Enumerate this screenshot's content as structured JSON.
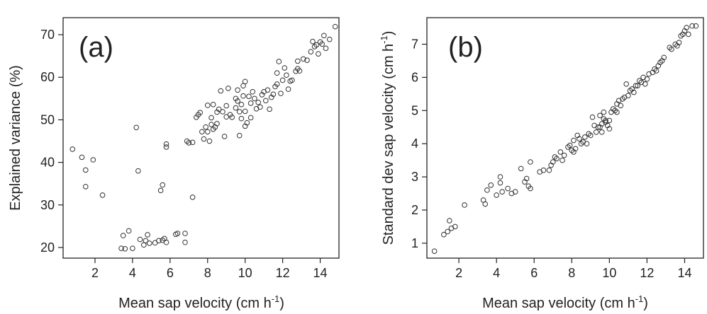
{
  "chart_data": [
    {
      "type": "scatter",
      "panel_label": "(a)",
      "xlabel": "Mean sap velocity (cm h",
      "xlabel_sup": "-1",
      "xlabel_end": ")",
      "ylabel": "Explained variance (%)",
      "xlim": [
        0.3,
        15.0
      ],
      "ylim": [
        17.5,
        74.0
      ],
      "xticks": [
        2,
        4,
        6,
        8,
        10,
        12,
        14
      ],
      "yticks": [
        20,
        30,
        40,
        50,
        60,
        70
      ],
      "points": [
        [
          0.8,
          43.1
        ],
        [
          1.3,
          41.2
        ],
        [
          1.5,
          38.2
        ],
        [
          1.5,
          34.3
        ],
        [
          1.9,
          40.6
        ],
        [
          2.4,
          32.3
        ],
        [
          3.4,
          19.8
        ],
        [
          3.5,
          22.8
        ],
        [
          3.6,
          19.7
        ],
        [
          3.8,
          23.9
        ],
        [
          4.0,
          19.8
        ],
        [
          4.2,
          48.2
        ],
        [
          4.3,
          38.0
        ],
        [
          4.4,
          21.9
        ],
        [
          4.6,
          20.6
        ],
        [
          4.7,
          21.6
        ],
        [
          4.8,
          23.0
        ],
        [
          4.9,
          21.0
        ],
        [
          5.2,
          21.1
        ],
        [
          5.4,
          21.6
        ],
        [
          5.5,
          33.4
        ],
        [
          5.6,
          34.7
        ],
        [
          5.6,
          21.7
        ],
        [
          5.7,
          22.1
        ],
        [
          5.8,
          21.2
        ],
        [
          5.8,
          44.3
        ],
        [
          5.8,
          43.6
        ],
        [
          6.3,
          23.1
        ],
        [
          6.4,
          23.3
        ],
        [
          6.8,
          21.2
        ],
        [
          6.8,
          23.3
        ],
        [
          6.9,
          45.0
        ],
        [
          7.0,
          44.6
        ],
        [
          7.2,
          31.8
        ],
        [
          7.2,
          44.7
        ],
        [
          7.4,
          50.6
        ],
        [
          7.5,
          51.2
        ],
        [
          7.6,
          51.7
        ],
        [
          7.7,
          47.2
        ],
        [
          7.8,
          45.5
        ],
        [
          7.9,
          48.3
        ],
        [
          8.0,
          53.4
        ],
        [
          8.0,
          47.2
        ],
        [
          8.1,
          45.0
        ],
        [
          8.2,
          48.9
        ],
        [
          8.2,
          50.5
        ],
        [
          8.3,
          47.8
        ],
        [
          8.3,
          53.6
        ],
        [
          8.4,
          48.3
        ],
        [
          8.5,
          49.1
        ],
        [
          8.5,
          51.8
        ],
        [
          8.6,
          52.5
        ],
        [
          8.7,
          56.8
        ],
        [
          8.8,
          51.9
        ],
        [
          8.9,
          46.1
        ],
        [
          9.0,
          50.7
        ],
        [
          9.0,
          53.3
        ],
        [
          9.1,
          57.4
        ],
        [
          9.2,
          51.2
        ],
        [
          9.3,
          50.6
        ],
        [
          9.5,
          52.8
        ],
        [
          9.5,
          55.0
        ],
        [
          9.6,
          54.4
        ],
        [
          9.6,
          57.0
        ],
        [
          9.7,
          46.3
        ],
        [
          9.7,
          51.9
        ],
        [
          9.8,
          50.3
        ],
        [
          9.8,
          53.6
        ],
        [
          9.9,
          55.6
        ],
        [
          9.9,
          58.0
        ],
        [
          10.0,
          48.5
        ],
        [
          10.0,
          52.0
        ],
        [
          10.0,
          59.0
        ],
        [
          10.1,
          49.3
        ],
        [
          10.2,
          55.5
        ],
        [
          10.3,
          50.5
        ],
        [
          10.3,
          53.9
        ],
        [
          10.4,
          56.6
        ],
        [
          10.5,
          55.0
        ],
        [
          10.6,
          52.6
        ],
        [
          10.7,
          54.1
        ],
        [
          10.8,
          53.0
        ],
        [
          10.9,
          55.9
        ],
        [
          11.0,
          56.6
        ],
        [
          11.1,
          54.5
        ],
        [
          11.2,
          57.0
        ],
        [
          11.3,
          52.5
        ],
        [
          11.4,
          55.3
        ],
        [
          11.5,
          56.0
        ],
        [
          11.6,
          57.8
        ],
        [
          11.7,
          58.4
        ],
        [
          11.7,
          61.0
        ],
        [
          11.8,
          63.7
        ],
        [
          11.9,
          56.2
        ],
        [
          12.0,
          59.3
        ],
        [
          12.1,
          62.2
        ],
        [
          12.2,
          60.5
        ],
        [
          12.3,
          57.2
        ],
        [
          12.4,
          59.1
        ],
        [
          12.5,
          59.3
        ],
        [
          12.7,
          61.4
        ],
        [
          12.8,
          62.0
        ],
        [
          12.8,
          63.8
        ],
        [
          12.9,
          61.5
        ],
        [
          13.1,
          64.3
        ],
        [
          13.3,
          64.0
        ],
        [
          13.5,
          66.0
        ],
        [
          13.6,
          68.4
        ],
        [
          13.7,
          67.2
        ],
        [
          13.8,
          67.6
        ],
        [
          13.9,
          65.5
        ],
        [
          14.0,
          68.3
        ],
        [
          14.1,
          67.8
        ],
        [
          14.2,
          69.8
        ],
        [
          14.3,
          66.8
        ],
        [
          14.5,
          68.9
        ],
        [
          14.8,
          71.9
        ]
      ]
    },
    {
      "type": "scatter",
      "panel_label": "(b)",
      "xlabel": "Mean sap velocity (cm h",
      "xlabel_sup": "-1",
      "xlabel_end": ")",
      "ylabel": "Standard dev sap velocity (cm h",
      "ylabel_sup": "-1",
      "ylabel_end": ")",
      "xlim": [
        0.3,
        15.0
      ],
      "ylim": [
        0.55,
        7.8
      ],
      "xticks": [
        2,
        4,
        6,
        8,
        10,
        12,
        14
      ],
      "yticks": [
        1,
        2,
        3,
        4,
        5,
        6,
        7
      ],
      "points": [
        [
          0.7,
          0.76
        ],
        [
          1.2,
          1.26
        ],
        [
          1.4,
          1.35
        ],
        [
          1.5,
          1.68
        ],
        [
          1.6,
          1.45
        ],
        [
          1.8,
          1.5
        ],
        [
          2.3,
          2.15
        ],
        [
          3.3,
          2.3
        ],
        [
          3.4,
          2.18
        ],
        [
          3.5,
          2.6
        ],
        [
          3.7,
          2.75
        ],
        [
          4.0,
          2.45
        ],
        [
          4.2,
          3.0
        ],
        [
          4.2,
          2.82
        ],
        [
          4.3,
          2.55
        ],
        [
          4.6,
          2.65
        ],
        [
          4.8,
          2.5
        ],
        [
          5.0,
          2.55
        ],
        [
          5.3,
          3.25
        ],
        [
          5.5,
          2.85
        ],
        [
          5.6,
          2.95
        ],
        [
          5.7,
          2.72
        ],
        [
          5.8,
          2.65
        ],
        [
          5.8,
          3.45
        ],
        [
          6.3,
          3.15
        ],
        [
          6.5,
          3.2
        ],
        [
          6.8,
          3.2
        ],
        [
          6.9,
          3.35
        ],
        [
          7.0,
          3.45
        ],
        [
          7.1,
          3.6
        ],
        [
          7.2,
          3.55
        ],
        [
          7.4,
          3.75
        ],
        [
          7.5,
          3.5
        ],
        [
          7.6,
          3.65
        ],
        [
          7.8,
          3.9
        ],
        [
          7.9,
          3.95
        ],
        [
          8.0,
          3.8
        ],
        [
          8.1,
          3.75
        ],
        [
          8.1,
          4.1
        ],
        [
          8.2,
          3.85
        ],
        [
          8.3,
          4.25
        ],
        [
          8.4,
          4.15
        ],
        [
          8.5,
          4.0
        ],
        [
          8.6,
          4.05
        ],
        [
          8.7,
          4.2
        ],
        [
          8.8,
          4.0
        ],
        [
          8.9,
          4.3
        ],
        [
          9.0,
          4.25
        ],
        [
          9.1,
          4.8
        ],
        [
          9.2,
          4.55
        ],
        [
          9.3,
          4.35
        ],
        [
          9.4,
          4.5
        ],
        [
          9.5,
          4.5
        ],
        [
          9.5,
          4.85
        ],
        [
          9.6,
          4.6
        ],
        [
          9.6,
          4.35
        ],
        [
          9.7,
          4.75
        ],
        [
          9.7,
          4.95
        ],
        [
          9.8,
          4.65
        ],
        [
          9.8,
          4.7
        ],
        [
          9.9,
          4.55
        ],
        [
          10.0,
          4.7
        ],
        [
          10.0,
          4.45
        ],
        [
          10.1,
          4.95
        ],
        [
          10.2,
          5.05
        ],
        [
          10.3,
          5.0
        ],
        [
          10.4,
          5.2
        ],
        [
          10.4,
          4.95
        ],
        [
          10.5,
          5.3
        ],
        [
          10.6,
          5.15
        ],
        [
          10.7,
          5.35
        ],
        [
          10.8,
          5.4
        ],
        [
          10.9,
          5.8
        ],
        [
          11.0,
          5.45
        ],
        [
          11.1,
          5.6
        ],
        [
          11.2,
          5.65
        ],
        [
          11.3,
          5.55
        ],
        [
          11.4,
          5.75
        ],
        [
          11.5,
          5.75
        ],
        [
          11.6,
          5.9
        ],
        [
          11.7,
          5.85
        ],
        [
          11.8,
          6.0
        ],
        [
          11.9,
          5.8
        ],
        [
          12.0,
          5.95
        ],
        [
          12.1,
          6.1
        ],
        [
          12.3,
          6.15
        ],
        [
          12.4,
          6.25
        ],
        [
          12.5,
          6.2
        ],
        [
          12.6,
          6.35
        ],
        [
          12.7,
          6.45
        ],
        [
          12.8,
          6.5
        ],
        [
          12.9,
          6.6
        ],
        [
          13.2,
          6.9
        ],
        [
          13.3,
          6.85
        ],
        [
          13.5,
          7.0
        ],
        [
          13.6,
          6.95
        ],
        [
          13.7,
          7.05
        ],
        [
          13.8,
          7.25
        ],
        [
          13.9,
          7.3
        ],
        [
          14.0,
          7.4
        ],
        [
          14.1,
          7.5
        ],
        [
          14.2,
          7.3
        ],
        [
          14.4,
          7.55
        ],
        [
          14.6,
          7.55
        ]
      ]
    }
  ]
}
